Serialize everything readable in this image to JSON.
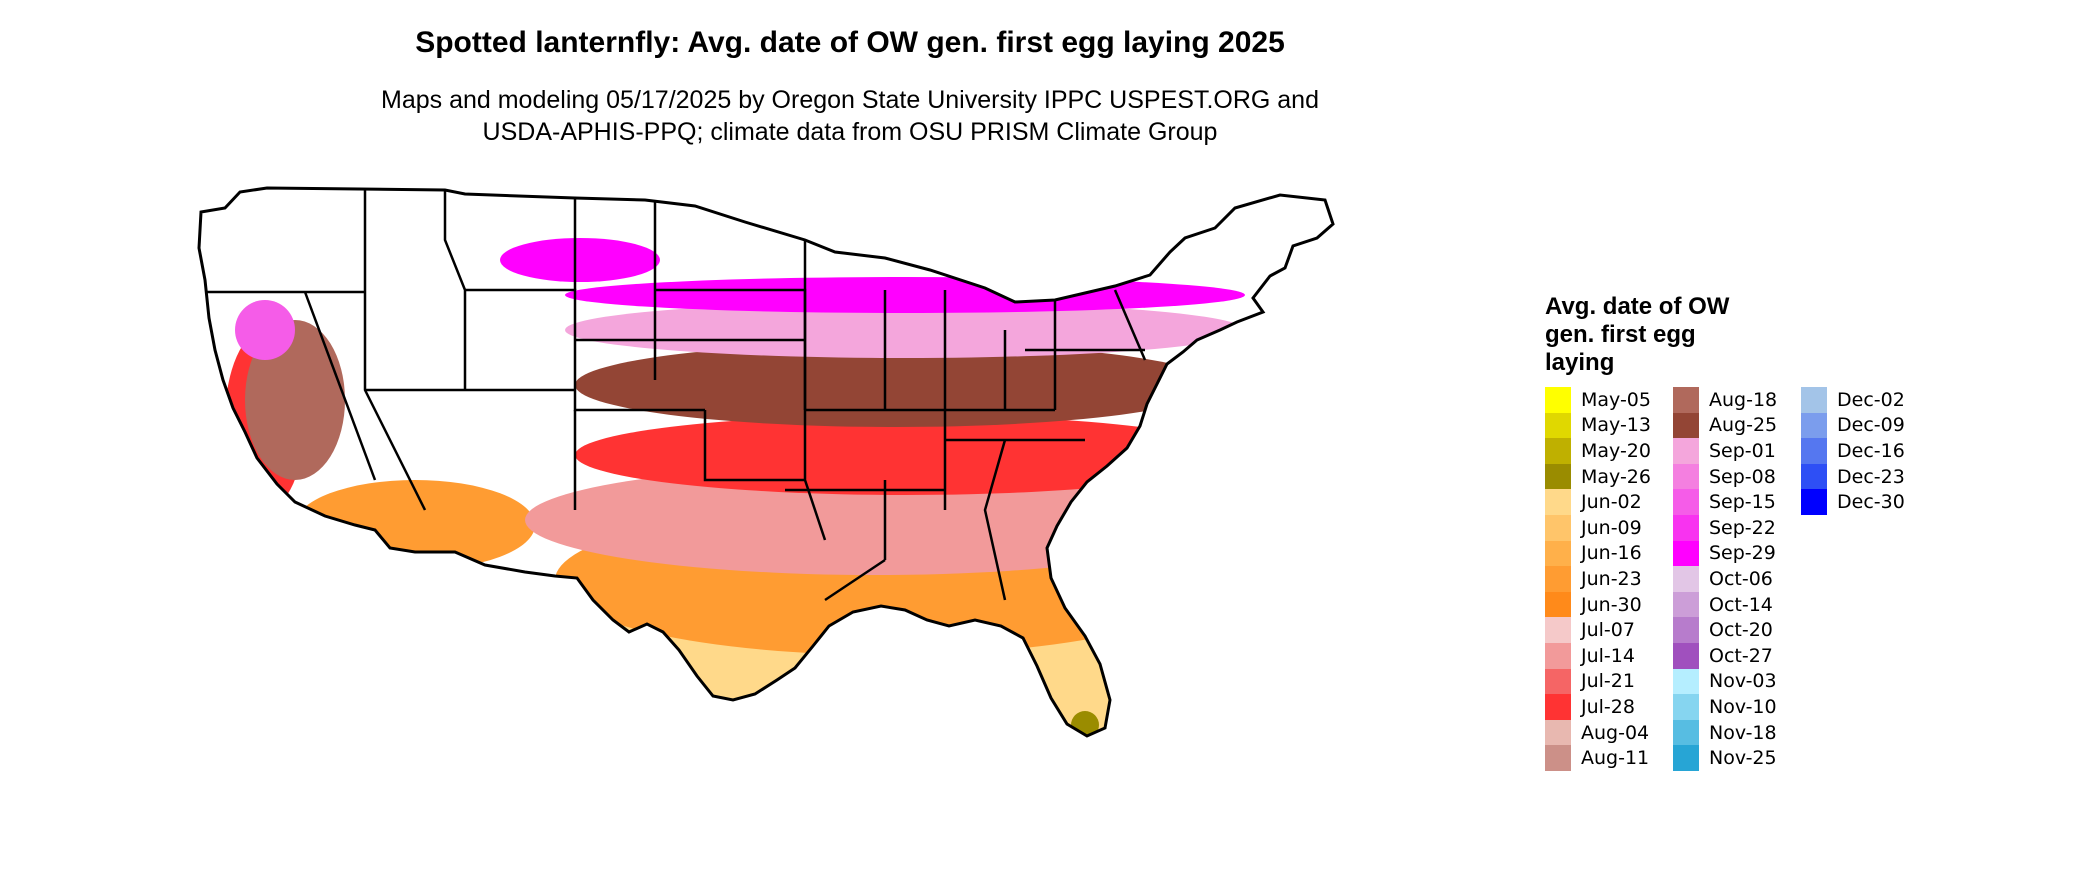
{
  "title": "Spotted lanternfly: Avg. date of OW gen. first egg laying 2025",
  "subtitle_lines": [
    "Maps and modeling 05/17/2025 by Oregon State University IPPC USPEST.ORG and",
    "USDA-APHIS-PPQ; climate data from OSU PRISM Climate Group"
  ],
  "legend": {
    "title_lines": [
      "Avg. date of OW",
      "gen. first egg",
      "laying"
    ],
    "columns": [
      [
        {
          "label": "May-05",
          "color": "#ffff00"
        },
        {
          "label": "May-13",
          "color": "#e0d800"
        },
        {
          "label": "May-20",
          "color": "#bfb000"
        },
        {
          "label": "May-26",
          "color": "#9a8c00"
        },
        {
          "label": "Jun-02",
          "color": "#ffd98a"
        },
        {
          "label": "Jun-09",
          "color": "#ffc56a"
        },
        {
          "label": "Jun-16",
          "color": "#ffb04a"
        },
        {
          "label": "Jun-23",
          "color": "#ff9c32"
        },
        {
          "label": "Jun-30",
          "color": "#ff8a1a"
        },
        {
          "label": "Jul-07",
          "color": "#f5c9c9"
        },
        {
          "label": "Jul-14",
          "color": "#f29a9a"
        },
        {
          "label": "Jul-21",
          "color": "#f56565"
        },
        {
          "label": "Jul-28",
          "color": "#ff3333"
        },
        {
          "label": "Aug-04",
          "color": "#e8b8b0"
        },
        {
          "label": "Aug-11",
          "color": "#cc9088"
        }
      ],
      [
        {
          "label": "Aug-18",
          "color": "#b0695c"
        },
        {
          "label": "Aug-25",
          "color": "#934535"
        },
        {
          "label": "Sep-01",
          "color": "#f4a6dc"
        },
        {
          "label": "Sep-08",
          "color": "#f47fe0"
        },
        {
          "label": "Sep-15",
          "color": "#f55ce8"
        },
        {
          "label": "Sep-22",
          "color": "#f833f0"
        },
        {
          "label": "Sep-29",
          "color": "#ff00ff"
        },
        {
          "label": "Oct-06",
          "color": "#e2c6e6"
        },
        {
          "label": "Oct-14",
          "color": "#cc9ed8"
        },
        {
          "label": "Oct-20",
          "color": "#b77ccc"
        },
        {
          "label": "Oct-27",
          "color": "#a050be"
        },
        {
          "label": "Nov-03",
          "color": "#b5eeff"
        },
        {
          "label": "Nov-10",
          "color": "#86d5f0"
        },
        {
          "label": "Nov-18",
          "color": "#57bde2"
        },
        {
          "label": "Nov-25",
          "color": "#27a5d5"
        }
      ],
      [
        {
          "label": "Dec-02",
          "color": "#a3c4e8"
        },
        {
          "label": "Dec-09",
          "color": "#7b9ded"
        },
        {
          "label": "Dec-16",
          "color": "#5577f0"
        },
        {
          "label": "Dec-23",
          "color": "#2e4ff5"
        },
        {
          "label": "Dec-30",
          "color": "#0000ff"
        }
      ]
    ]
  }
}
